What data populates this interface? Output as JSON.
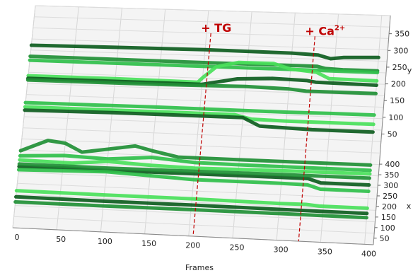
{
  "chart_data": {
    "type": "line",
    "view": "3d",
    "xlabel": "Frames",
    "ylabel": "y",
    "zlabel": "x",
    "xlim": [
      0,
      410
    ],
    "xticks": [
      "0",
      "50",
      "100",
      "150",
      "200",
      "250",
      "300",
      "350",
      "400"
    ],
    "upper_panel_ticks": [
      "350",
      "300",
      "250",
      "200",
      "150",
      "100",
      "50"
    ],
    "upper_panel_range": [
      0,
      370
    ],
    "lower_panel_ticks": [
      "400",
      "350",
      "300",
      "250",
      "200",
      "150",
      "100",
      "50"
    ],
    "lower_panel_range": [
      30,
      420
    ],
    "grid": true,
    "annotations": [
      {
        "text": "+ TG",
        "x": 205
      },
      {
        "text": "+ Ca",
        "superscript": "2+",
        "x": 325
      }
    ],
    "annotation_color": "#c00000",
    "series_colors": [
      "#0d5c1e",
      "#1f8f35",
      "#2fbf4a",
      "#49e05a"
    ],
    "upper_traces": [
      {
        "y": [
          [
            0,
            282
          ],
          [
            100,
            284
          ],
          [
            200,
            285
          ],
          [
            300,
            283
          ],
          [
            330,
            280
          ],
          [
            345,
            270
          ],
          [
            360,
            275
          ],
          [
            400,
            278
          ]
        ]
      },
      {
        "y": [
          [
            0,
            248
          ],
          [
            100,
            247
          ],
          [
            200,
            246
          ],
          [
            300,
            246
          ],
          [
            330,
            246
          ],
          [
            340,
            240
          ],
          [
            360,
            238
          ],
          [
            400,
            238
          ]
        ]
      },
      {
        "y": [
          [
            0,
            236
          ],
          [
            150,
            235
          ],
          [
            300,
            234
          ],
          [
            400,
            233
          ]
        ]
      },
      {
        "y": [
          [
            0,
            188
          ],
          [
            100,
            188
          ],
          [
            195,
            186
          ],
          [
            200,
            200
          ],
          [
            215,
            235
          ],
          [
            240,
            250
          ],
          [
            280,
            250
          ],
          [
            300,
            235
          ],
          [
            330,
            228
          ],
          [
            345,
            210
          ],
          [
            400,
            208
          ]
        ]
      },
      {
        "y": [
          [
            0,
            180
          ],
          [
            100,
            180
          ],
          [
            200,
            180
          ],
          [
            240,
            200
          ],
          [
            280,
            205
          ],
          [
            320,
            202
          ],
          [
            330,
            198
          ],
          [
            400,
            195
          ]
        ]
      },
      {
        "y": [
          [
            0,
            175
          ],
          [
            150,
            175
          ],
          [
            250,
            178
          ],
          [
            300,
            175
          ],
          [
            320,
            170
          ],
          [
            400,
            170
          ]
        ]
      },
      {
        "y": [
          [
            0,
            105
          ],
          [
            150,
            106
          ],
          [
            250,
            105
          ],
          [
            300,
            105
          ],
          [
            350,
            106
          ],
          [
            400,
            106
          ]
        ]
      },
      {
        "y": [
          [
            0,
            92
          ],
          [
            150,
            92
          ],
          [
            240,
            92
          ],
          [
            260,
            80
          ],
          [
            300,
            78
          ],
          [
            350,
            78
          ],
          [
            400,
            78
          ]
        ]
      },
      {
        "y": [
          [
            0,
            82
          ],
          [
            100,
            84
          ],
          [
            200,
            84
          ],
          [
            250,
            84
          ],
          [
            270,
            60
          ],
          [
            330,
            55
          ],
          [
            400,
            55
          ]
        ]
      }
    ],
    "lower_traces": [
      {
        "x": [
          [
            0,
            395
          ],
          [
            30,
            450
          ],
          [
            50,
            440
          ],
          [
            70,
            400
          ],
          [
            100,
            420
          ],
          [
            130,
            440
          ],
          [
            150,
            420
          ],
          [
            180,
            395
          ],
          [
            250,
            394
          ],
          [
            300,
            394
          ],
          [
            400,
            394
          ]
        ]
      },
      {
        "x": [
          [
            0,
            370
          ],
          [
            50,
            380
          ],
          [
            100,
            372
          ],
          [
            150,
            388
          ],
          [
            200,
            372
          ],
          [
            250,
            370
          ],
          [
            330,
            369
          ],
          [
            400,
            369
          ]
        ]
      },
      {
        "x": [
          [
            0,
            350
          ],
          [
            60,
            345
          ],
          [
            100,
            360
          ],
          [
            150,
            350
          ],
          [
            200,
            345
          ],
          [
            300,
            350
          ],
          [
            400,
            352
          ]
        ]
      },
      {
        "x": [
          [
            0,
            318
          ],
          [
            50,
            320
          ],
          [
            100,
            316
          ],
          [
            150,
            318
          ],
          [
            250,
            318
          ],
          [
            300,
            318
          ],
          [
            330,
            318
          ],
          [
            345,
            300
          ],
          [
            400,
            300
          ]
        ]
      },
      {
        "x": [
          [
            0,
            330
          ],
          [
            100,
            328
          ],
          [
            200,
            330
          ],
          [
            300,
            332
          ],
          [
            400,
            332
          ]
        ]
      },
      {
        "x": [
          [
            0,
            302
          ],
          [
            100,
            310
          ],
          [
            150,
            300
          ],
          [
            200,
            290
          ],
          [
            300,
            290
          ],
          [
            330,
            288
          ],
          [
            345,
            270
          ],
          [
            400,
            270
          ]
        ]
      },
      {
        "x": [
          [
            0,
            200
          ],
          [
            100,
            198
          ],
          [
            200,
            198
          ],
          [
            250,
            196
          ],
          [
            300,
            194
          ],
          [
            330,
            195
          ],
          [
            345,
            190
          ],
          [
            400,
            190
          ]
        ]
      },
      {
        "x": [
          [
            0,
            170
          ],
          [
            100,
            168
          ],
          [
            200,
            168
          ],
          [
            300,
            166
          ],
          [
            400,
            165
          ]
        ]
      },
      {
        "x": [
          [
            0,
            145
          ],
          [
            100,
            145
          ],
          [
            200,
            146
          ],
          [
            300,
            146
          ],
          [
            400,
            145
          ]
        ]
      }
    ]
  }
}
